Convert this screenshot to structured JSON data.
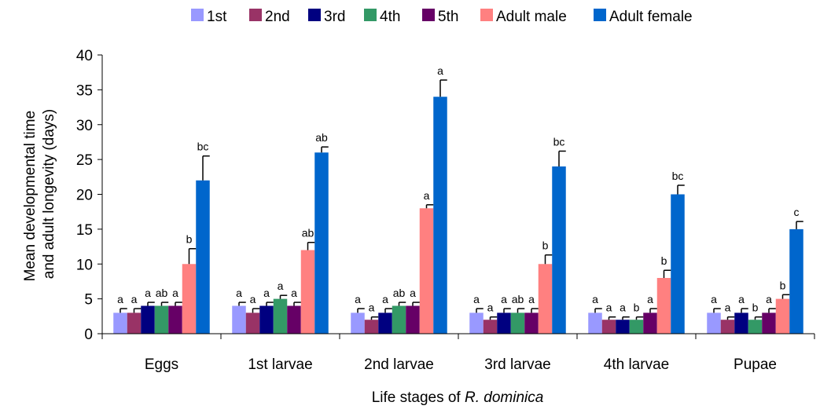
{
  "chart_data": {
    "type": "bar",
    "xlabel_prefix": "Life stages of ",
    "xlabel_italic": "R. dominica",
    "ylabel_lines": [
      "Mean developmental time",
      "and adult longevity (days)"
    ],
    "ylim": [
      0,
      40
    ],
    "yticks": [
      "0",
      "5",
      "10",
      "15",
      "20",
      "25",
      "30",
      "35",
      "40"
    ],
    "ytick_values": [
      0,
      5,
      10,
      15,
      20,
      25,
      30,
      35,
      40
    ],
    "grid": false,
    "legend_position": "top",
    "categories": [
      "Eggs",
      "1st larvae",
      "2nd larvae",
      "3rd larvae",
      "4th larvae",
      "Pupae"
    ],
    "series": [
      {
        "name": "1st",
        "color": "#9999ff",
        "values": [
          3,
          4,
          3,
          3,
          3,
          3
        ],
        "errors": [
          0.6,
          0.5,
          0.6,
          0.6,
          0.6,
          0.6
        ],
        "labels": [
          "a",
          "a",
          "a",
          "a",
          "a",
          "a"
        ]
      },
      {
        "name": "2nd",
        "color": "#993366",
        "values": [
          3,
          3,
          2,
          2,
          2,
          2
        ],
        "errors": [
          0.6,
          0.6,
          0.4,
          0.4,
          0.4,
          0.4
        ],
        "labels": [
          "a",
          "a",
          "a",
          "a",
          "a",
          "a"
        ]
      },
      {
        "name": "3rd",
        "color": "#000080",
        "values": [
          4,
          4,
          3,
          3,
          2,
          3
        ],
        "errors": [
          0.5,
          0.5,
          0.6,
          0.6,
          0.4,
          0.6
        ],
        "labels": [
          "a",
          "a",
          "a",
          "a",
          "a",
          "a"
        ]
      },
      {
        "name": "4th",
        "color": "#339966",
        "values": [
          4,
          5,
          4,
          3,
          2,
          2
        ],
        "errors": [
          0.5,
          0.5,
          0.5,
          0.6,
          0.4,
          0.4
        ],
        "labels": [
          "ab",
          "a",
          "ab",
          "ab",
          "b",
          "b"
        ]
      },
      {
        "name": "5th",
        "color": "#660066",
        "values": [
          4,
          4,
          4,
          3,
          3,
          3
        ],
        "errors": [
          0.5,
          0.5,
          0.5,
          0.6,
          0.6,
          0.6
        ],
        "labels": [
          "a",
          "a",
          "a",
          "a",
          "a",
          "a"
        ]
      },
      {
        "name": "Adult male",
        "color": "#ff8080",
        "values": [
          10,
          12,
          18,
          10,
          8,
          5
        ],
        "errors": [
          2.2,
          1.1,
          0.5,
          1.3,
          1.1,
          0.6
        ],
        "labels": [
          "b",
          "ab",
          "a",
          "b",
          "b",
          "b"
        ]
      },
      {
        "name": "Adult female",
        "color": "#0066cc",
        "values": [
          22,
          26,
          34,
          24,
          20,
          15
        ],
        "errors": [
          3.5,
          0.8,
          2.4,
          2.2,
          1.3,
          1.1
        ],
        "labels": [
          "bc",
          "ab",
          "a",
          "bc",
          "bc",
          "c"
        ]
      }
    ]
  }
}
